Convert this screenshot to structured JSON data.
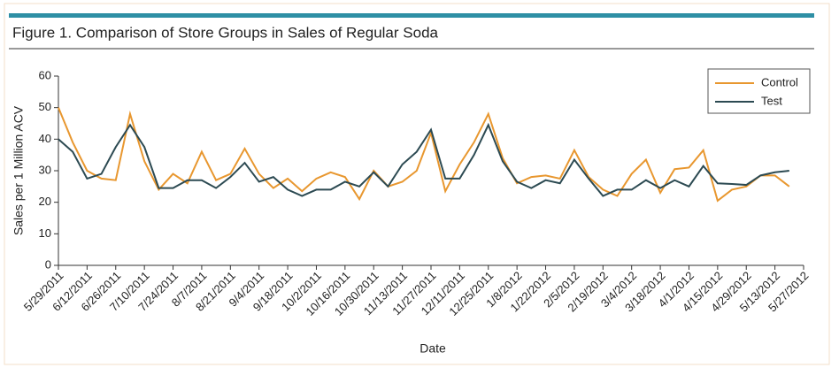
{
  "chart_data": {
    "type": "line",
    "title": "Figure 1. Comparison of Store Groups in Sales of Regular Soda",
    "x_label": "Date",
    "y_label": "Sales per 1 Million ACV",
    "categories": [
      "5/29/2011",
      null,
      "6/12/2011",
      null,
      "6/26/2011",
      null,
      "7/10/2011",
      null,
      "7/24/2011",
      null,
      "8/7/2011",
      null,
      "8/21/2011",
      null,
      "9/4/2011",
      null,
      "9/18/2011",
      null,
      "10/2/2011",
      null,
      "10/16/2011",
      null,
      "10/30/2011",
      null,
      "11/13/2011",
      null,
      "11/27/2011",
      null,
      "12/11/2011",
      null,
      "12/25/2011",
      null,
      "1/8/2012",
      null,
      "1/22/2012",
      null,
      "2/5/2012",
      null,
      "2/19/2012",
      null,
      "3/4/2012",
      null,
      "3/18/2012",
      null,
      "4/1/2012",
      null,
      "4/15/2012",
      null,
      "4/29/2012",
      null,
      "5/13/2012",
      null,
      "5/27/2012"
    ],
    "series": [
      {
        "name": "Control",
        "color": "#e8972f",
        "values": [
          50,
          39,
          30,
          27.5,
          27,
          48,
          33,
          24,
          29,
          26,
          36,
          27,
          29,
          37,
          29,
          24.5,
          27.5,
          23.5,
          27.5,
          29.5,
          28,
          21,
          30,
          25,
          26.5,
          30,
          42,
          23.5,
          32,
          39,
          48,
          34,
          26,
          28,
          28.5,
          27.5,
          36.5,
          28,
          24,
          22,
          29,
          33.5,
          23,
          30.5,
          31,
          36.5,
          20.5,
          24,
          25,
          28.5,
          28.5,
          25,
          null
        ]
      },
      {
        "name": "Test",
        "color": "#2c4a52",
        "values": [
          40,
          36,
          27.5,
          29,
          37.5,
          44.5,
          37.5,
          24.5,
          24.5,
          27,
          27,
          24.5,
          28,
          32.5,
          26.5,
          28,
          24,
          22,
          24,
          24,
          26.5,
          25,
          29.5,
          25,
          32,
          36,
          43,
          27.5,
          27.5,
          35,
          44.5,
          33,
          26.5,
          24.5,
          27,
          26,
          33.5,
          27.5,
          22,
          24,
          24,
          27,
          24.5,
          27,
          25,
          31.5,
          26,
          25.8,
          25.5,
          28.5,
          29.5,
          30,
          null
        ]
      }
    ],
    "ylim": [
      0,
      60
    ],
    "yticks": [
      0,
      10,
      20,
      30,
      40,
      50,
      60
    ],
    "grid": false,
    "legend": "upper right"
  }
}
